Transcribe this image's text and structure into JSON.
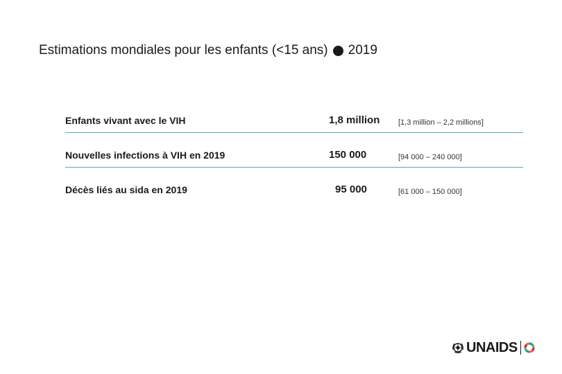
{
  "slide": {
    "title_prefix": "Estimations mondiales pour les enfants (<15 ans)",
    "title_year": "2019"
  },
  "table": {
    "rows": [
      {
        "label": "Enfants vivant avec le VIH",
        "value": "1,8 million",
        "range": "[1,3 million – 2,2 millions]"
      },
      {
        "label": "Nouvelles infections à VIH en 2019",
        "value": "150 000",
        "range": "[94 000 – 240 000]"
      },
      {
        "label": "Décès liés au sida en 2019",
        "value": "95 000",
        "range": "[61 000 – 150 000]"
      }
    ]
  },
  "logo": {
    "text": "UNAIDS",
    "emblem_icon": "un-emblem-icon",
    "wheel_icon": "sdg-wheel-icon"
  }
}
